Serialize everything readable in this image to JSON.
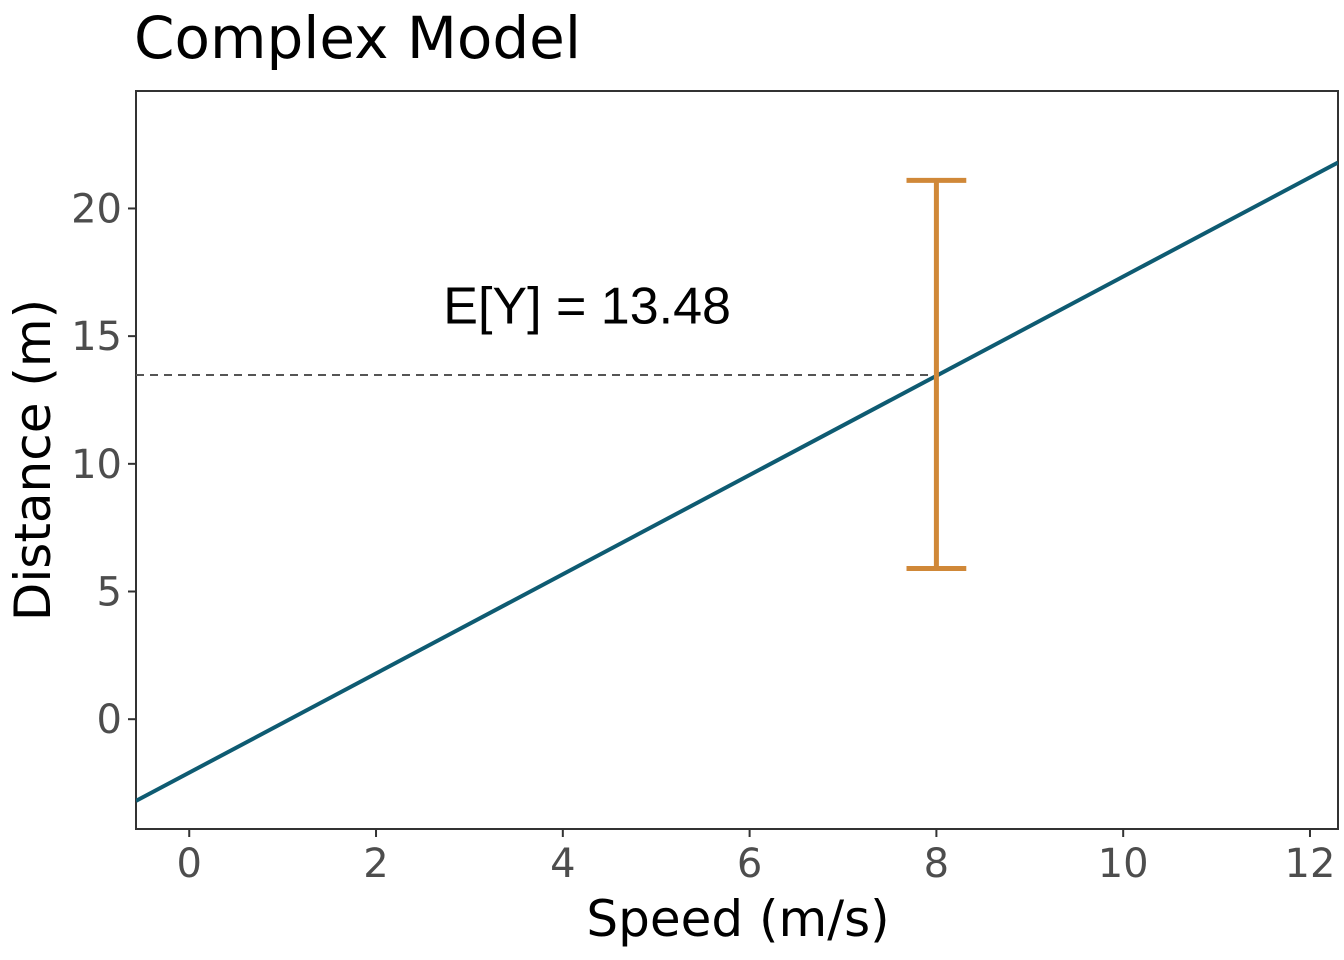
{
  "chart_data": {
    "type": "line",
    "title": "Complex Model",
    "xlabel": "Speed (m/s)",
    "ylabel": "Distance (m)",
    "xlim": [
      -0.57,
      12.3
    ],
    "ylim": [
      -4.3,
      24.6
    ],
    "x_ticks": [
      0,
      2,
      4,
      6,
      8,
      10,
      12
    ],
    "x_tick_labels": [
      "0",
      "2",
      "4",
      "6",
      "8",
      "10",
      "12"
    ],
    "y_ticks": [
      0,
      5,
      10,
      15,
      20
    ],
    "y_tick_labels": [
      "0",
      "5",
      "10",
      "15",
      "20"
    ],
    "grid": false,
    "series": [
      {
        "type": "line",
        "x": [
          -0.57,
          12.3
        ],
        "y": [
          -3.2,
          21.8
        ],
        "color": "#0e5b72"
      }
    ],
    "reference_line": {
      "y": 13.48,
      "x_start": -0.57,
      "x_end": 8,
      "style": "dashed",
      "color": "#555555"
    },
    "error_bar": {
      "x": 8,
      "y_low": 5.9,
      "y_high": 21.1,
      "cap_half_width": 0.32,
      "color": "#d08838"
    },
    "annotations": [
      {
        "text": "E[Y] = 13.48",
        "x": 5.8,
        "y": 15.5
      }
    ]
  }
}
